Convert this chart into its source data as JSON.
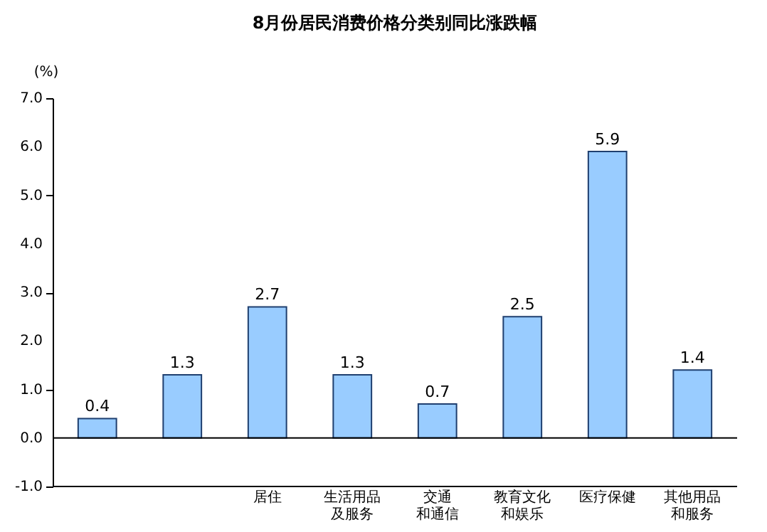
{
  "chart_data": {
    "type": "bar",
    "title": "8月份居民消费价格分类别同比涨跌幅",
    "ylabel": "(%)",
    "categories": [
      null,
      null,
      "居住",
      "生活用品及服务",
      "交通和通信",
      "教育文化和娱乐",
      "医疗保健",
      "其他用品和服务"
    ],
    "values": [
      0.4,
      1.3,
      2.7,
      1.3,
      0.7,
      2.5,
      5.9,
      1.4
    ],
    "color": "#99ccff",
    "ylim": [
      -1.0,
      7.0
    ],
    "yticks": [
      {
        "value": -1,
        "label": "-1.0"
      },
      {
        "value": 0,
        "label": "0.0"
      },
      {
        "value": 1,
        "label": "1.0"
      },
      {
        "value": 2,
        "label": "2.0"
      },
      {
        "value": 3,
        "label": "3.0"
      },
      {
        "value": 4,
        "label": "4.0"
      },
      {
        "value": 5,
        "label": "5.0"
      },
      {
        "value": 6,
        "label": "6.0"
      },
      {
        "value": 7,
        "label": "7.0"
      }
    ],
    "data_labels": true
  }
}
